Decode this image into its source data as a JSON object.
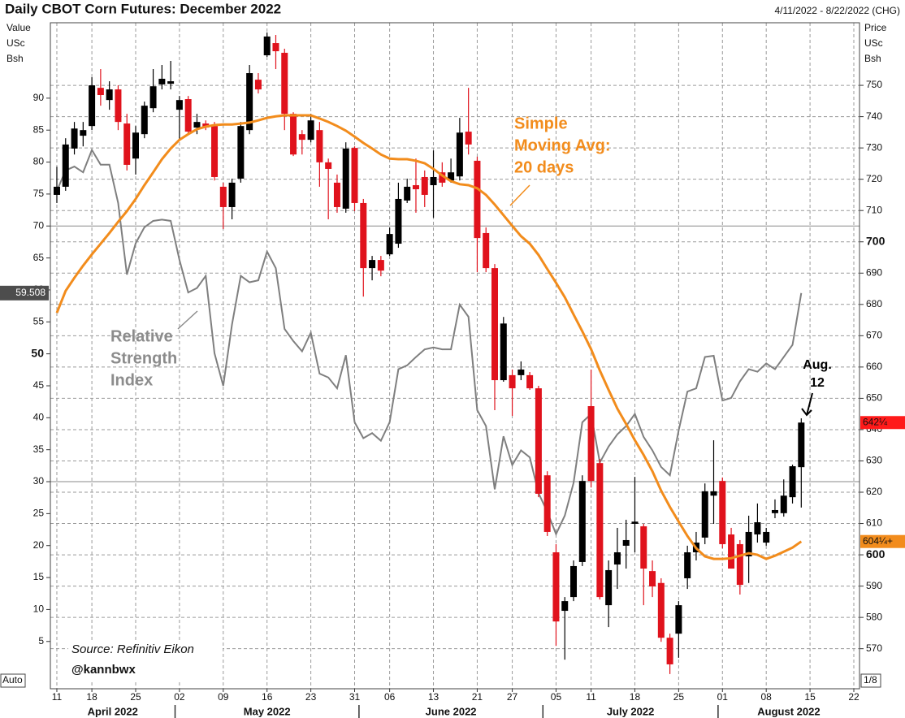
{
  "chart_data": {
    "type": "candlestick",
    "title": "Daily CBOT Corn Futures: December 2022",
    "subtitle": "4/11/2022 - 8/22/2022 (CHG)",
    "y_label": [
      "Value",
      "USc",
      "Bsh"
    ],
    "y2_label": [
      "Price",
      "USc",
      "Bsh"
    ],
    "corner_labels": {
      "bottom_left": "Auto",
      "bottom_right": "1/8"
    },
    "xlim": [
      -0.74,
      91.65
    ],
    "xticks": [
      {
        "value": 0,
        "label": "11"
      },
      {
        "value": 4,
        "label": "18"
      },
      {
        "value": 9,
        "label": "25"
      },
      {
        "value": 14,
        "label": "02"
      },
      {
        "value": 19,
        "label": "09"
      },
      {
        "value": 24,
        "label": "16"
      },
      {
        "value": 29,
        "label": "23"
      },
      {
        "value": 34,
        "label": "31"
      },
      {
        "value": 38,
        "label": "06"
      },
      {
        "value": 43,
        "label": "13"
      },
      {
        "value": 48,
        "label": "21"
      },
      {
        "value": 52,
        "label": "27"
      },
      {
        "value": 57,
        "label": "05"
      },
      {
        "value": 61,
        "label": "11"
      },
      {
        "value": 66,
        "label": "18"
      },
      {
        "value": 71,
        "label": "25"
      },
      {
        "value": 76,
        "label": "01"
      },
      {
        "value": 81,
        "label": "08"
      },
      {
        "value": 86,
        "label": "15"
      },
      {
        "value": 91,
        "label": "22"
      }
    ],
    "months": [
      {
        "value": 0,
        "label": "April 2022"
      },
      {
        "value": 14,
        "label": "May 2022"
      },
      {
        "value": 35,
        "label": "June 2022"
      },
      {
        "value": 56,
        "label": "July 2022"
      },
      {
        "value": 76,
        "label": "August 2022"
      }
    ],
    "ylim": [
      -2.4,
      101.8
    ],
    "yticks": [
      5,
      10,
      15,
      20,
      25,
      30,
      35,
      40,
      45,
      50,
      55,
      60,
      65,
      70,
      75,
      80,
      85,
      90
    ],
    "emphasized_yticks": [
      50
    ],
    "y2lim": [
      557.2,
      770.0
    ],
    "y2ticks": [
      570,
      580,
      590,
      600,
      610,
      620,
      630,
      640,
      650,
      660,
      670,
      680,
      690,
      700,
      710,
      720,
      730,
      740,
      750
    ],
    "emphasized_y2ticks": [
      600,
      700
    ],
    "reference_lines": [
      70,
      30
    ],
    "grid": true,
    "up_color": "#000000",
    "down_color": "#e0121c",
    "axis": "y2",
    "ohlc": [
      [
        715.0,
        724.0,
        712.4,
        717.6
      ],
      [
        717.6,
        733.1,
        716.3,
        731.1
      ],
      [
        729.8,
        738.3,
        727.9,
        736.2
      ],
      [
        733.9,
        738.3,
        730.5,
        735.7
      ],
      [
        737.0,
        752.6,
        735.7,
        750.0
      ],
      [
        749.2,
        755.2,
        743.5,
        746.9
      ],
      [
        745.3,
        751.3,
        742.2,
        748.7
      ],
      [
        748.7,
        750.0,
        735.7,
        738.3
      ],
      [
        737.8,
        740.9,
        722.8,
        724.6
      ],
      [
        726.6,
        737.0,
        721.5,
        734.9
      ],
      [
        734.4,
        744.8,
        733.1,
        743.5
      ],
      [
        742.7,
        755.2,
        741.4,
        749.7
      ],
      [
        750.3,
        756.5,
        748.7,
        752.1
      ],
      [
        750.5,
        757.8,
        748.7,
        751.3
      ],
      [
        742.2,
        746.6,
        732.6,
        745.3
      ],
      [
        745.6,
        746.6,
        734.4,
        735.2
      ],
      [
        736.5,
        740.9,
        734.4,
        738.3
      ],
      [
        737.8,
        738.8,
        735.7,
        736.5
      ],
      [
        737.0,
        738.3,
        719.6,
        720.7
      ],
      [
        717.6,
        718.9,
        704.1,
        711.1
      ],
      [
        711.1,
        720.2,
        707.2,
        718.9
      ],
      [
        720.2,
        738.3,
        718.9,
        737.0
      ],
      [
        735.7,
        756.5,
        734.4,
        753.9
      ],
      [
        751.8,
        753.9,
        747.4,
        748.7
      ],
      [
        759.6,
        766.9,
        759.1,
        765.6
      ],
      [
        763.5,
        766.1,
        755.2,
        760.9
      ],
      [
        760.4,
        761.7,
        735.7,
        740.9
      ],
      [
        740.9,
        741.4,
        727.4,
        727.9
      ],
      [
        734.4,
        735.7,
        727.9,
        732.6
      ],
      [
        732.6,
        740.9,
        731.8,
        738.8
      ],
      [
        735.7,
        738.3,
        717.6,
        725.4
      ],
      [
        725.4,
        726.6,
        707.2,
        723.3
      ],
      [
        718.9,
        721.5,
        709.3,
        711.1
      ],
      [
        710.6,
        731.8,
        709.3,
        729.8
      ],
      [
        730.0,
        730.5,
        709.8,
        712.4
      ],
      [
        712.4,
        713.7,
        682.5,
        691.6
      ],
      [
        691.6,
        695.5,
        687.7,
        694.2
      ],
      [
        694.2,
        695.5,
        689.0,
        690.8
      ],
      [
        696.0,
        704.6,
        695.5,
        702.5
      ],
      [
        699.4,
        718.9,
        698.1,
        713.7
      ],
      [
        713.2,
        720.2,
        712.4,
        717.6
      ],
      [
        718.1,
        726.6,
        709.3,
        716.8
      ],
      [
        720.7,
        722.8,
        711.1,
        715.0
      ],
      [
        718.1,
        729.2,
        707.7,
        720.7
      ],
      [
        722.2,
        725.4,
        717.6,
        718.9
      ],
      [
        719.6,
        726.6,
        718.9,
        722.2
      ],
      [
        720.9,
        739.6,
        719.6,
        734.9
      ],
      [
        735.2,
        749.2,
        727.9,
        731.1
      ],
      [
        725.9,
        727.2,
        690.3,
        701.2
      ],
      [
        702.8,
        704.6,
        690.3,
        691.6
      ],
      [
        691.6,
        692.9,
        646.2,
        655.8
      ],
      [
        655.8,
        676.0,
        655.3,
        673.9
      ],
      [
        657.4,
        659.2,
        644.4,
        653.2
      ],
      [
        657.4,
        661.8,
        655.8,
        659.2
      ],
      [
        657.4,
        658.4,
        652.7,
        653.2
      ],
      [
        653.2,
        654.0,
        618.4,
        619.5
      ],
      [
        625.4,
        626.7,
        606.0,
        607.3
      ],
      [
        600.8,
        603.4,
        570.9,
        578.7
      ],
      [
        582.1,
        586.5,
        566.5,
        585.2
      ],
      [
        586.5,
        598.2,
        585.2,
        596.4
      ],
      [
        597.7,
        625.4,
        596.4,
        623.6
      ],
      [
        647.5,
        659.2,
        621.5,
        623.6
      ],
      [
        629.3,
        630.6,
        585.7,
        586.5
      ],
      [
        583.9,
        598.2,
        576.9,
        595.1
      ],
      [
        596.9,
        608.6,
        589.1,
        600.8
      ],
      [
        602.9,
        611.2,
        595.6,
        604.7
      ],
      [
        609.9,
        624.9,
        600.8,
        610.6
      ],
      [
        609.1,
        609.9,
        583.9,
        595.6
      ],
      [
        594.8,
        598.2,
        586.5,
        589.9
      ],
      [
        591.0,
        592.5,
        572.2,
        573.5
      ],
      [
        573.5,
        574.8,
        561.9,
        565.0
      ],
      [
        574.8,
        585.2,
        567.1,
        583.9
      ],
      [
        592.5,
        602.9,
        589.1,
        600.8
      ],
      [
        600.8,
        607.3,
        598.2,
        603.9
      ],
      [
        605.5,
        622.8,
        603.4,
        620.3
      ],
      [
        618.9,
        636.6,
        609.9,
        620.3
      ],
      [
        623.6,
        624.7,
        602.1,
        603.4
      ],
      [
        606.5,
        608.6,
        595.6,
        595.6
      ],
      [
        603.4,
        604.7,
        587.3,
        590.4
      ],
      [
        599.5,
        612.5,
        591.0,
        607.3
      ],
      [
        606.5,
        616.4,
        603.9,
        610.4
      ],
      [
        603.9,
        608.6,
        602.9,
        607.3
      ],
      [
        613.3,
        617.7,
        611.7,
        614.3
      ],
      [
        613.3,
        624.1,
        612.2,
        618.9
      ],
      [
        618.4,
        628.8,
        616.4,
        628.3
      ],
      [
        628.0,
        643.6,
        615.1,
        642.25
      ]
    ],
    "moving_average": {
      "color": "#f28c1c",
      "axis": "y2",
      "values": [
        677.3,
        684.3,
        688.5,
        692.4,
        696.0,
        699.4,
        702.8,
        706.4,
        709.8,
        713.7,
        718.1,
        722.2,
        726.4,
        729.8,
        732.6,
        734.4,
        736.0,
        736.8,
        737.3,
        737.5,
        737.5,
        737.8,
        738.1,
        738.8,
        739.6,
        740.1,
        740.4,
        740.4,
        740.4,
        740.4,
        739.4,
        738.3,
        737.0,
        735.5,
        733.6,
        731.6,
        729.8,
        727.9,
        726.6,
        726.4,
        726.4,
        725.9,
        725.1,
        723.3,
        721.2,
        719.4,
        718.4,
        718.1,
        717.1,
        715.0,
        711.9,
        708.5,
        705.1,
        701.8,
        699.4,
        695.8,
        691.3,
        686.9,
        682.3,
        676.8,
        671.4,
        665.7,
        658.9,
        652.7,
        646.7,
        641.8,
        636.6,
        631.9,
        626.7,
        620.5,
        615.3,
        610.6,
        606.0,
        602.1,
        599.5,
        598.7,
        598.7,
        598.9,
        599.7,
        600.5,
        600.0,
        598.7,
        599.7,
        601.0,
        602.3,
        604.25
      ]
    },
    "rsi": {
      "color": "#7f7f7f",
      "marker_color": "#4d4d4d",
      "axis": "y",
      "values": [
        75.5,
        78.7,
        79.3,
        78.4,
        81.9,
        79.6,
        79.6,
        73.6,
        62.4,
        67.3,
        69.8,
        70.8,
        71.0,
        70.8,
        64.7,
        59.6,
        60.3,
        62.2,
        50.1,
        45.0,
        54.6,
        62.2,
        61.2,
        61.5,
        66.0,
        63.4,
        53.9,
        52.0,
        50.4,
        53.3,
        46.9,
        46.3,
        44.6,
        49.8,
        39.3,
        36.8,
        37.6,
        36.4,
        39.3,
        47.6,
        48.2,
        49.5,
        50.7,
        51.0,
        50.7,
        50.7,
        57.7,
        55.8,
        41.2,
        38.7,
        28.8,
        37.1,
        32.6,
        34.9,
        33.8,
        28.2,
        25.3,
        21.8,
        24.7,
        29.8,
        39.3,
        40.6,
        33.0,
        35.5,
        37.4,
        38.7,
        40.6,
        37.0,
        34.9,
        32.3,
        31.0,
        38.0,
        44.1,
        44.6,
        49.5,
        49.7,
        42.7,
        43.1,
        45.7,
        47.6,
        47.2,
        48.5,
        47.6,
        49.5,
        51.4,
        59.508
      ]
    },
    "price_markers": [
      {
        "value": 642.25,
        "label": "642¼",
        "color": "#ff1a1a"
      },
      {
        "value": 604.25,
        "label": "604¼+",
        "color": "#f28c1c"
      }
    ],
    "annotations": [
      {
        "lines": [
          "Simple",
          "Moving Avg:",
          "20 days"
        ],
        "color": "#f28c1c"
      },
      {
        "lines": [
          "Relative",
          "Strength",
          "Index"
        ],
        "color": "#8c8c8c"
      },
      {
        "lines": [
          "Aug.",
          "12"
        ],
        "color": "#000000"
      }
    ],
    "source": "Source: Refinitiv Eikon",
    "credit": "@kannbwx"
  }
}
